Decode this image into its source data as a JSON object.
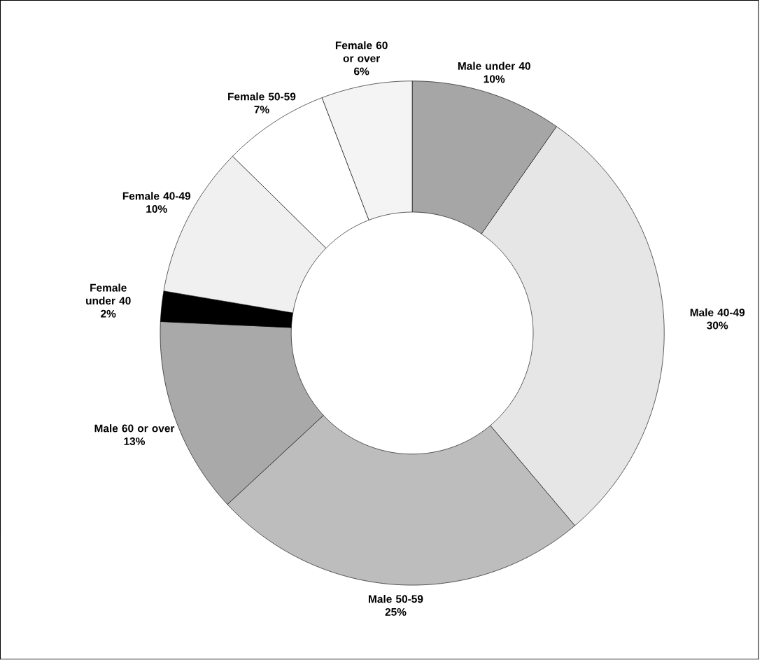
{
  "chart_data": {
    "type": "donut",
    "categories": [
      "Male under 40",
      "Male 40-49",
      "Male 50-59",
      "Male 60 or over",
      "Female under 40",
      "Female 40-49",
      "Female 50-59",
      "Female 60 or over"
    ],
    "values": [
      10,
      30,
      25,
      13,
      2,
      10,
      7,
      6
    ],
    "value_labels": [
      "10%",
      "30%",
      "25%",
      "13%",
      "2%",
      "10%",
      "7%",
      "6%"
    ],
    "colors": [
      "#a6a6a6",
      "#e6e6e6",
      "#bdbdbd",
      "#a9a9a9",
      "#000000",
      "#f0f0f0",
      "#ffffff",
      "#f4f4f4"
    ]
  }
}
